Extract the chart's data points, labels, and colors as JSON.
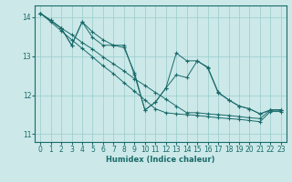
{
  "xlabel": "Humidex (Indice chaleur)",
  "bg_color": "#cce8e8",
  "grid_color": "#99cccc",
  "line_color": "#1a6b6b",
  "ylim": [
    10.8,
    14.3
  ],
  "xlim": [
    -0.5,
    23.5
  ],
  "yticks": [
    11,
    12,
    13,
    14
  ],
  "xticks": [
    0,
    1,
    2,
    3,
    4,
    5,
    6,
    7,
    8,
    9,
    10,
    11,
    12,
    13,
    14,
    15,
    16,
    17,
    18,
    19,
    20,
    21,
    22,
    23
  ],
  "series": [
    {
      "x": [
        0,
        1,
        2,
        3,
        4,
        5,
        6,
        7,
        8,
        9,
        10,
        11,
        12,
        13,
        14,
        15,
        16,
        17,
        18,
        19,
        20,
        21,
        22,
        23
      ],
      "y": [
        14.1,
        13.92,
        13.72,
        13.55,
        13.35,
        13.18,
        12.98,
        12.8,
        12.62,
        12.42,
        12.25,
        12.07,
        11.9,
        11.72,
        11.55,
        11.55,
        11.52,
        11.5,
        11.48,
        11.45,
        11.42,
        11.4,
        11.62,
        11.62
      ]
    },
    {
      "x": [
        0,
        1,
        2,
        3,
        4,
        5,
        6,
        7,
        8,
        9,
        10,
        11,
        12,
        13,
        14,
        15,
        16,
        17,
        18,
        19,
        20,
        21,
        22,
        23
      ],
      "y": [
        14.1,
        13.88,
        13.65,
        13.42,
        13.2,
        12.98,
        12.75,
        12.55,
        12.32,
        12.1,
        11.88,
        11.65,
        11.55,
        11.52,
        11.5,
        11.48,
        11.45,
        11.42,
        11.4,
        11.38,
        11.35,
        11.32,
        11.58,
        11.58
      ]
    },
    {
      "x": [
        0,
        1,
        2,
        3,
        4,
        5,
        6,
        7,
        8,
        9,
        10,
        11,
        12,
        13,
        14,
        15,
        16,
        17,
        18,
        19,
        20,
        21,
        22,
        23
      ],
      "y": [
        14.1,
        13.92,
        13.72,
        13.28,
        13.88,
        13.62,
        13.42,
        13.28,
        13.22,
        12.58,
        11.62,
        11.82,
        12.18,
        13.08,
        12.88,
        12.88,
        12.72,
        12.08,
        11.88,
        11.72,
        11.65,
        11.52,
        11.62,
        11.62
      ]
    },
    {
      "x": [
        0,
        2,
        3,
        4,
        5,
        6,
        7,
        8,
        9,
        10,
        11,
        12,
        13,
        14,
        15,
        16,
        17,
        18,
        19,
        20,
        21,
        22,
        23
      ],
      "y": [
        14.1,
        13.72,
        13.28,
        13.88,
        13.48,
        13.28,
        13.28,
        13.28,
        12.52,
        11.62,
        11.82,
        12.18,
        12.52,
        12.45,
        12.88,
        12.7,
        12.06,
        11.88,
        11.72,
        11.65,
        11.52,
        11.62,
        11.62
      ]
    }
  ]
}
